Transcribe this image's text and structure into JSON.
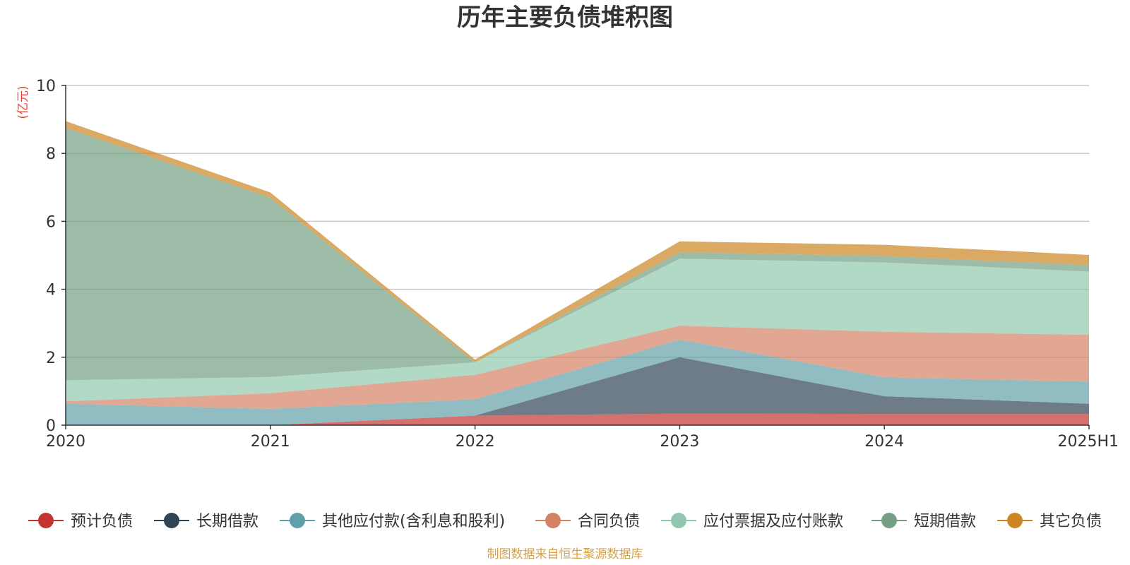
{
  "chart_data": {
    "type": "area",
    "stacked": true,
    "title": "历年主要负债堆积图",
    "y_unit_label": "(亿元)",
    "categories": [
      "2020",
      "2021",
      "2022",
      "2023",
      "2024",
      "2025H1"
    ],
    "ylim": [
      0,
      10
    ],
    "yticks": [
      0,
      2,
      4,
      6,
      8,
      10
    ],
    "grid": true,
    "legend_position": "bottom",
    "series": [
      {
        "name": "预计负债",
        "color": "#c23531",
        "values": [
          0.0,
          0.0,
          0.28,
          0.34,
          0.33,
          0.33
        ]
      },
      {
        "name": "长期借款",
        "color": "#2f4554",
        "values": [
          0.0,
          0.0,
          0.0,
          1.66,
          0.52,
          0.3
        ]
      },
      {
        "name": "其他应付款(含利息和股利)",
        "color": "#61a0a8",
        "values": [
          0.63,
          0.48,
          0.48,
          0.52,
          0.56,
          0.65
        ]
      },
      {
        "name": "合同负债",
        "color": "#d48265",
        "values": [
          0.07,
          0.46,
          0.72,
          0.41,
          1.34,
          1.38
        ]
      },
      {
        "name": "应付票据及应付账款",
        "color": "#91c7ae",
        "values": [
          0.62,
          0.48,
          0.37,
          1.97,
          2.04,
          1.86
        ]
      },
      {
        "name": "短期借款",
        "color": "#749f83",
        "values": [
          7.43,
          5.27,
          0.0,
          0.19,
          0.19,
          0.19
        ]
      },
      {
        "name": "其它负债",
        "color": "#ca8622",
        "values": [
          0.2,
          0.16,
          0.08,
          0.32,
          0.33,
          0.3
        ]
      }
    ]
  },
  "footer": {
    "source": "制图数据来自恒生聚源数据库"
  }
}
